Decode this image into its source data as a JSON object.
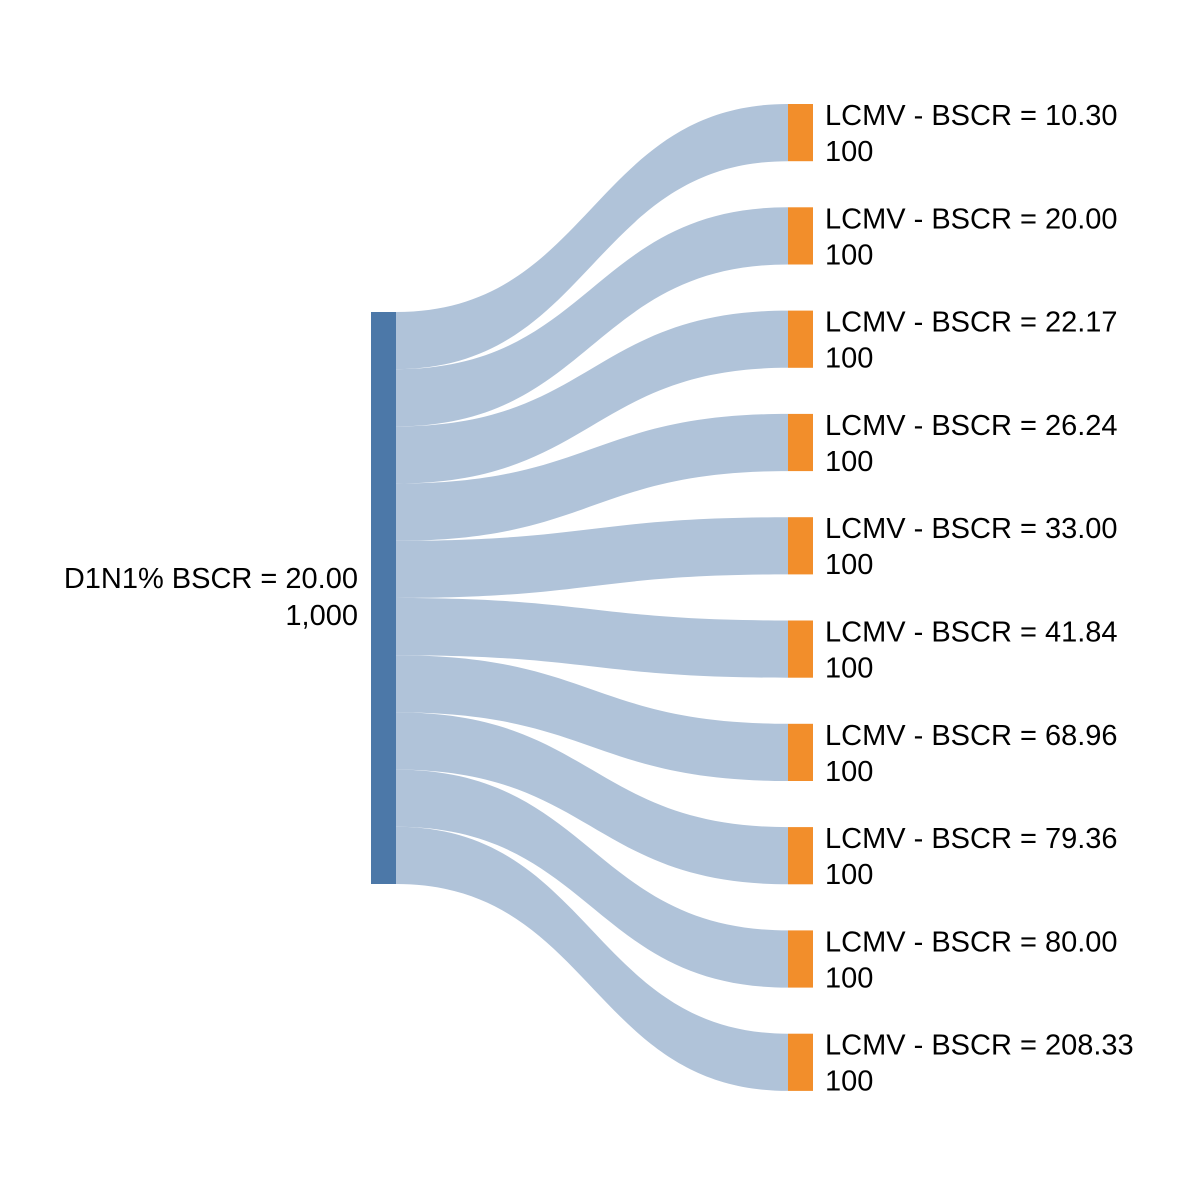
{
  "chart_data": {
    "type": "sankey",
    "source": {
      "name": "D1N1% BSCR = 20.00",
      "value_label": "1,000",
      "value": 1000
    },
    "targets": [
      {
        "name": "LCMV - BSCR = 10.30",
        "value_label": "100",
        "value": 100
      },
      {
        "name": "LCMV - BSCR = 20.00",
        "value_label": "100",
        "value": 100
      },
      {
        "name": "LCMV - BSCR = 22.17",
        "value_label": "100",
        "value": 100
      },
      {
        "name": "LCMV - BSCR = 26.24",
        "value_label": "100",
        "value": 100
      },
      {
        "name": "LCMV - BSCR = 33.00",
        "value_label": "100",
        "value": 100
      },
      {
        "name": "LCMV - BSCR = 41.84",
        "value_label": "100",
        "value": 100
      },
      {
        "name": "LCMV - BSCR = 68.96",
        "value_label": "100",
        "value": 100
      },
      {
        "name": "LCMV - BSCR = 79.36",
        "value_label": "100",
        "value": 100
      },
      {
        "name": "LCMV - BSCR = 80.00",
        "value_label": "100",
        "value": 100
      },
      {
        "name": "LCMV - BSCR = 208.33",
        "value_label": "100",
        "value": 100
      }
    ],
    "links": [
      {
        "source": 0,
        "target": 0,
        "value": 100
      },
      {
        "source": 0,
        "target": 1,
        "value": 100
      },
      {
        "source": 0,
        "target": 2,
        "value": 100
      },
      {
        "source": 0,
        "target": 3,
        "value": 100
      },
      {
        "source": 0,
        "target": 4,
        "value": 100
      },
      {
        "source": 0,
        "target": 5,
        "value": 100
      },
      {
        "source": 0,
        "target": 6,
        "value": 100
      },
      {
        "source": 0,
        "target": 7,
        "value": 100
      },
      {
        "source": 0,
        "target": 8,
        "value": 100
      },
      {
        "source": 0,
        "target": 9,
        "value": 100
      }
    ],
    "colors": {
      "source_node": "#4c78a8",
      "target_node": "#f28e2b",
      "link": "#b0c3d9"
    }
  }
}
